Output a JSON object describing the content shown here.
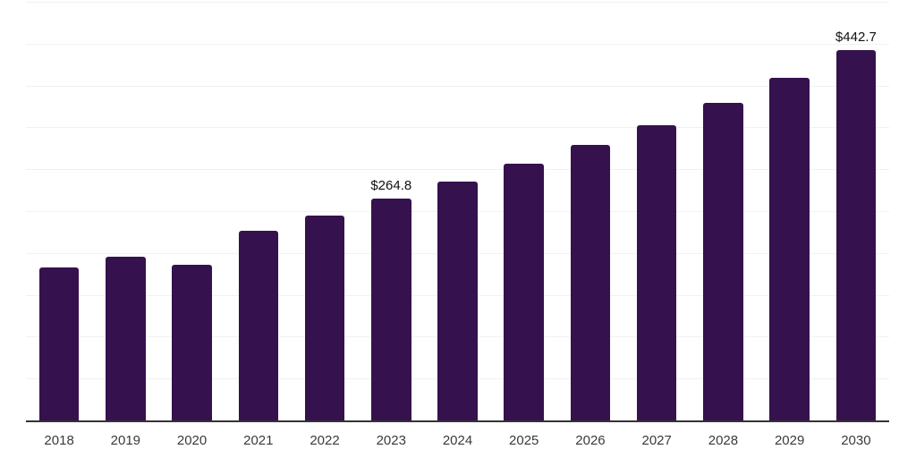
{
  "chart_data": {
    "type": "bar",
    "title": "",
    "xlabel": "",
    "ylabel": "",
    "categories": [
      "2018",
      "2019",
      "2020",
      "2021",
      "2022",
      "2023",
      "2024",
      "2025",
      "2026",
      "2027",
      "2028",
      "2029",
      "2030"
    ],
    "values": [
      182.5,
      195.3,
      185.6,
      226.1,
      244.9,
      264.8,
      285.4,
      306.2,
      328.6,
      352.5,
      378.9,
      409.3,
      442.7
    ],
    "annotations": [
      {
        "category": "2023",
        "label": "$264.8"
      },
      {
        "category": "2030",
        "label": "$442.7"
      }
    ],
    "ylim": [
      0,
      500
    ],
    "gridline_step": 50,
    "grid": "horizontal",
    "y_tick_labels": "none",
    "legend": "none",
    "colors": {
      "bar": "#35114D",
      "gridline": "#f1f1f1",
      "axis_line": "#333333",
      "tick_label": "#3a3a3a",
      "data_label": "#111111",
      "background": "#ffffff"
    }
  }
}
